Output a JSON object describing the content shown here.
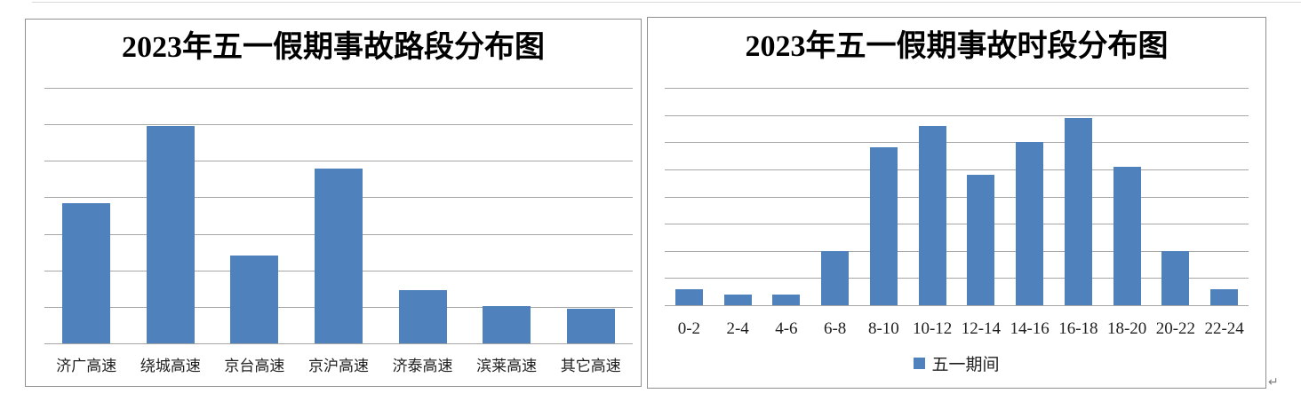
{
  "page": {
    "background": "#ffffff",
    "paragraph_mark": "↵"
  },
  "colors": {
    "bar_fill": "#4f81bd",
    "gridline": "#a6a6a6",
    "chart_border": "#8f8f8f",
    "title_text": "#000000",
    "label_text": "#1f1f1f"
  },
  "chart_data": [
    {
      "id": "road-sections",
      "type": "bar",
      "title": "2023年五一假期事故路段分布图",
      "categories": [
        "济广高速",
        "绕城高速",
        "京台高速",
        "京沪高速",
        "济泰高速",
        "滨莱高速",
        "其它高速"
      ],
      "values": [
        3.85,
        5.95,
        2.4,
        4.8,
        1.45,
        1.03,
        0.95
      ],
      "value_unit": "gridline-divisions (y axis has no tick labels; values estimated from gridlines)",
      "ylim": [
        0,
        7
      ],
      "grid_divisions": 7,
      "grid": true,
      "legend": null,
      "xlabel": "",
      "ylabel": ""
    },
    {
      "id": "time-periods",
      "type": "bar",
      "title": "2023年五一假期事故时段分布图",
      "categories": [
        "0-2",
        "2-4",
        "4-6",
        "6-8",
        "8-10",
        "10-12",
        "12-14",
        "14-16",
        "16-18",
        "18-20",
        "20-22",
        "22-24"
      ],
      "values": [
        0.6,
        0.4,
        0.4,
        2.0,
        5.8,
        6.6,
        4.8,
        6.0,
        6.9,
        5.1,
        2.0,
        0.6
      ],
      "value_unit": "gridline-divisions (y axis has no tick labels; values estimated from gridlines)",
      "ylim": [
        0,
        8
      ],
      "grid_divisions": 8,
      "grid": true,
      "legend": {
        "label": "五一期间",
        "position": "bottom"
      },
      "xlabel": "",
      "ylabel": ""
    }
  ]
}
